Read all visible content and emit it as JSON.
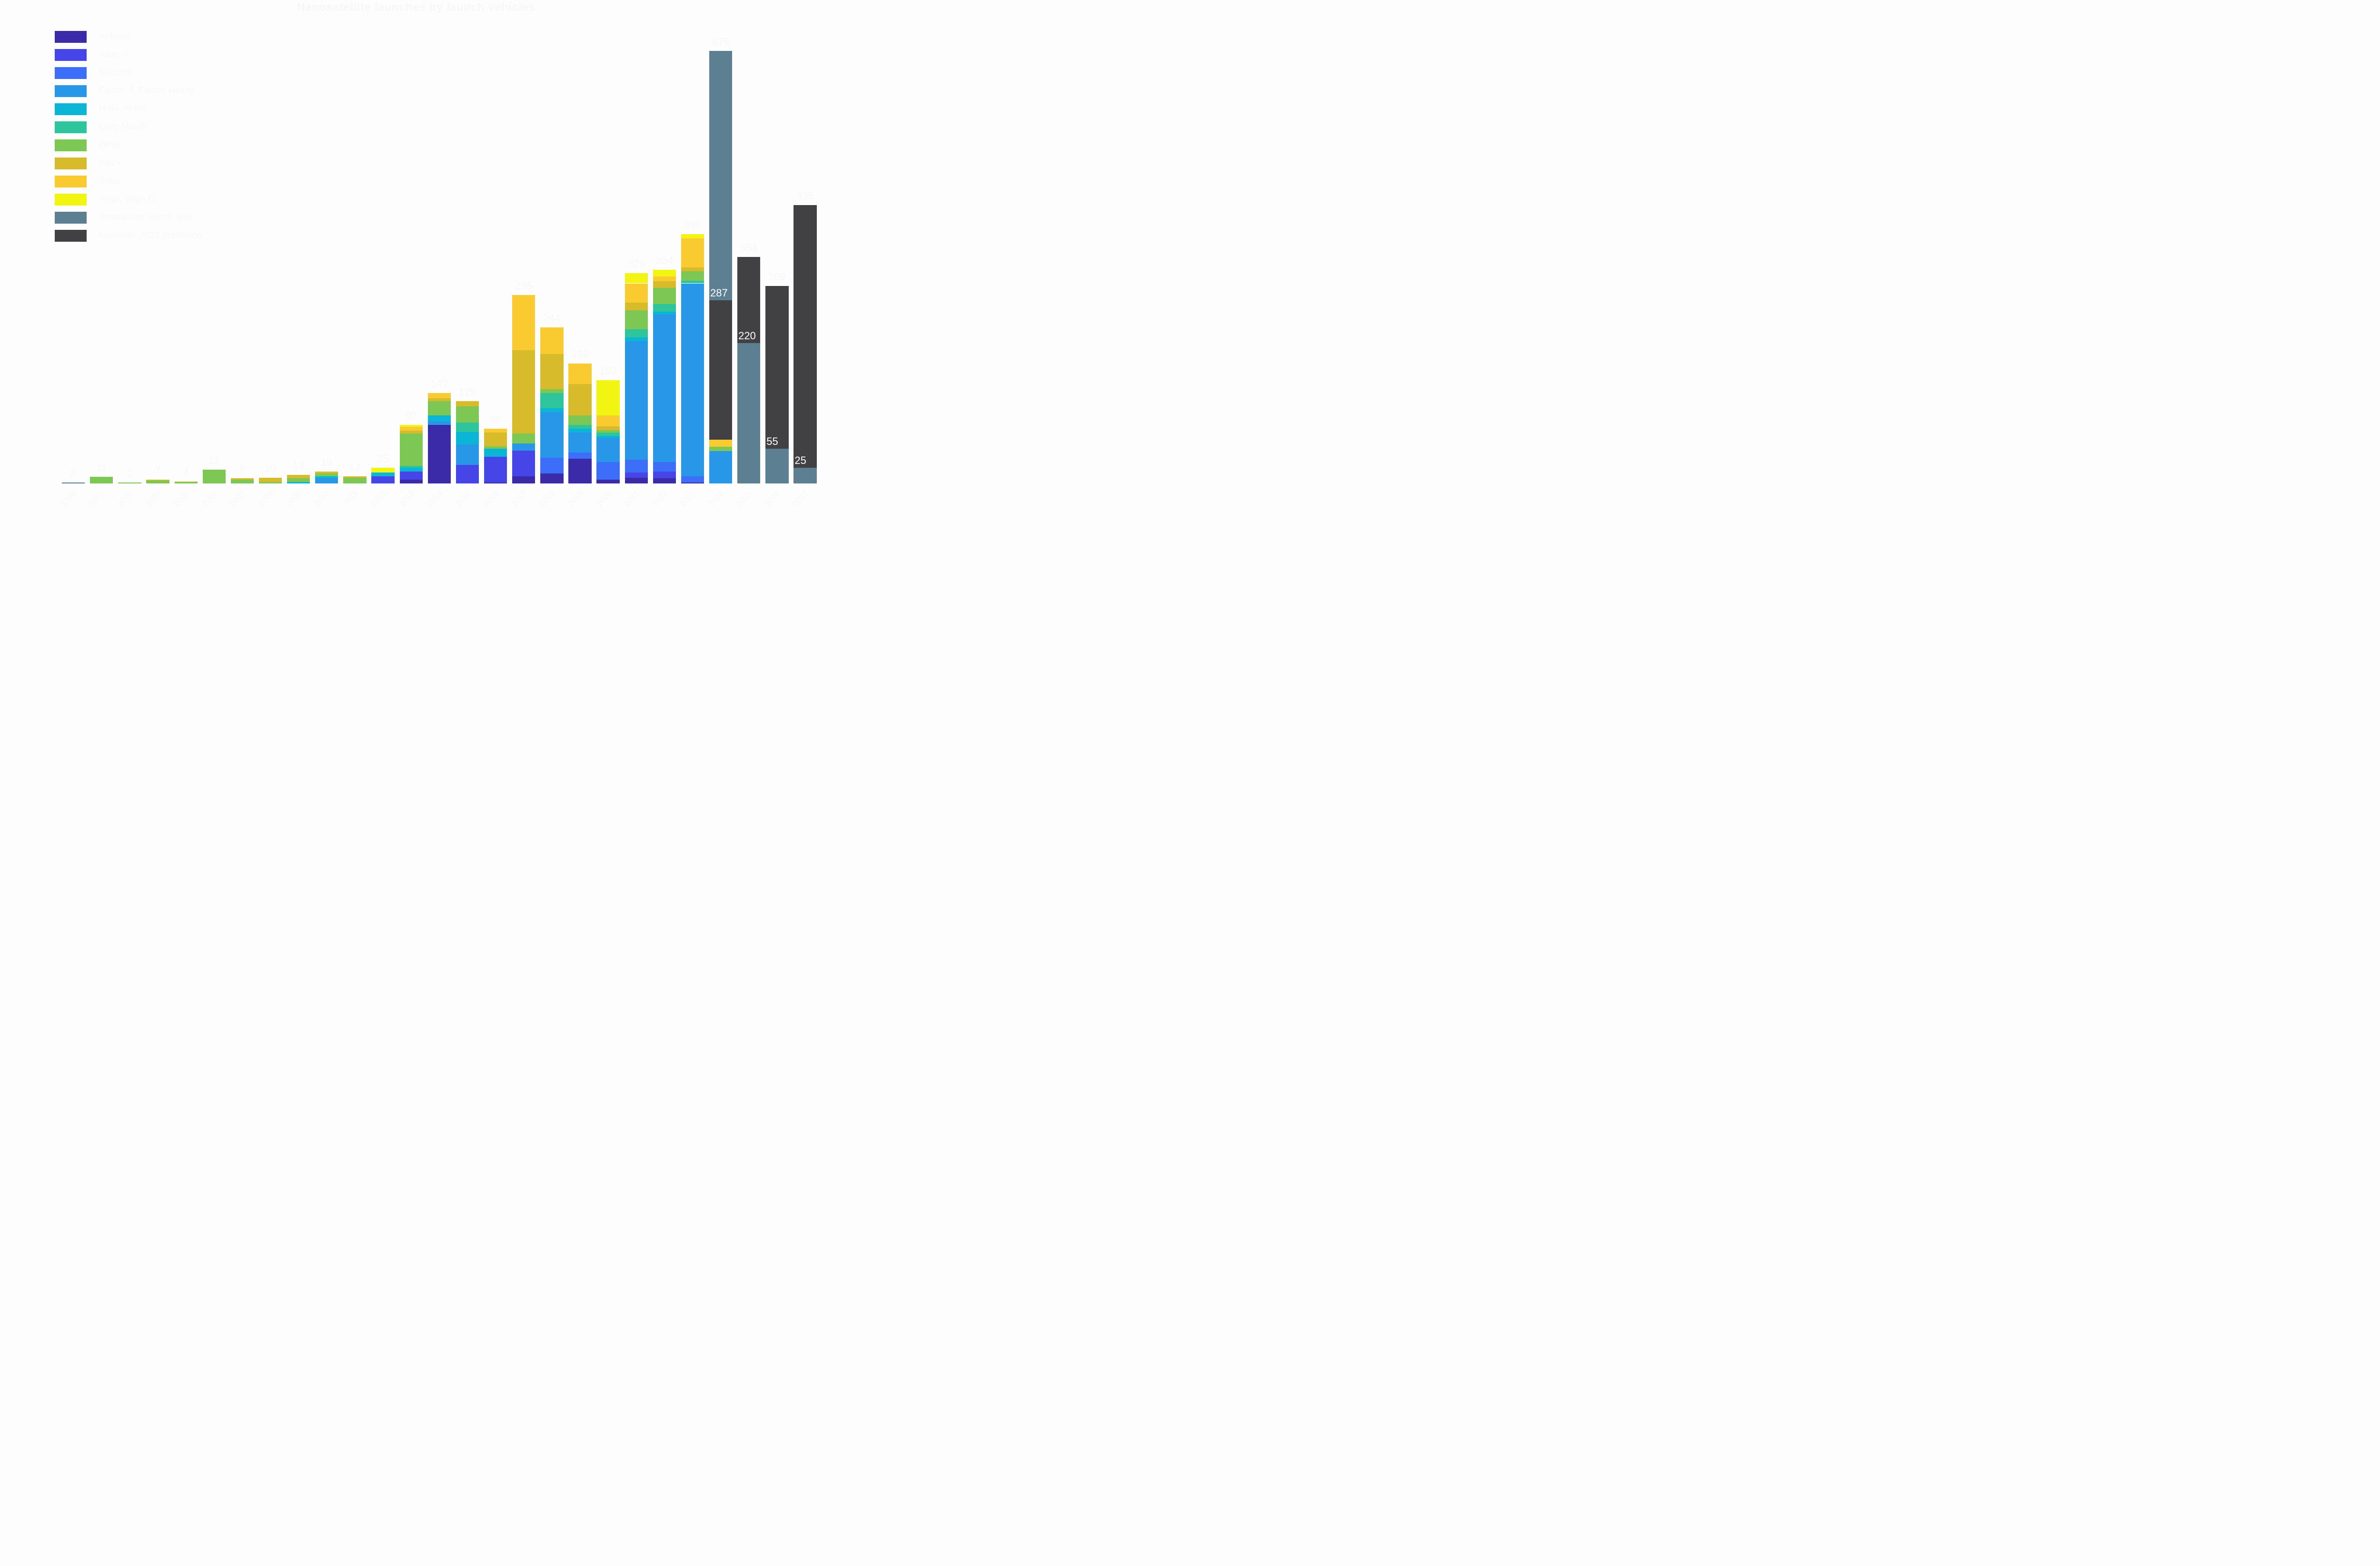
{
  "title": "Nanosatellite launches by launch vehicles",
  "colors": {
    "background": "#fdfdfe",
    "faint_text": "#f7f7f8",
    "bar_label_text": "#ffffff"
  },
  "legend": {
    "position": "top-left",
    "items": [
      {
        "id": "antares",
        "label": "Antares",
        "color": "#3b2ba8"
      },
      {
        "id": "atlas_v",
        "label": "Atlas V",
        "color": "#4645e8"
      },
      {
        "id": "electron",
        "label": "Electron",
        "color": "#3d6ef9"
      },
      {
        "id": "falcon",
        "label": "Falcon 9, Falcon Heavy",
        "color": "#2997e8"
      },
      {
        "id": "h2a",
        "label": "H-IIA, H-IIB",
        "color": "#0ab5d6"
      },
      {
        "id": "long_march",
        "label": "Long March",
        "color": "#2ec49c"
      },
      {
        "id": "other",
        "label": "Other",
        "color": "#7dc855"
      },
      {
        "id": "pslv",
        "label": "PSLV",
        "color": "#d8bb2b"
      },
      {
        "id": "sojuz",
        "label": "Sojuz",
        "color": "#f9cb30"
      },
      {
        "id": "vega",
        "label": "Vega, Vega C",
        "color": "#f2f512"
      },
      {
        "id": "announced",
        "label": "Announced launch year",
        "color": "#5d7f92"
      },
      {
        "id": "prediction",
        "label": "Nanosats 2022 prediction",
        "color": "#414042"
      }
    ]
  },
  "chart_data": {
    "type": "bar",
    "stacked": true,
    "title": "Nanosatellite launches by launch vehicles",
    "xlabel": "",
    "ylabel": "",
    "x_tick_rotation": -48,
    "grid": false,
    "y_range": [
      0,
      700
    ],
    "legend_position": "top-left",
    "series_colors": {
      "antares": "#3b2ba8",
      "atlas_v": "#4645e8",
      "electron": "#3d6ef9",
      "falcon": "#2997e8",
      "h2a": "#0ab5d6",
      "long_march": "#2ec49c",
      "other": "#7dc855",
      "pslv": "#d8bb2b",
      "sojuz": "#f9cb30",
      "vega": "#f2f512",
      "announced": "#5d7f92",
      "prediction": "#414042"
    },
    "bars": [
      {
        "year": "1998",
        "total": "2",
        "segments": [
          {
            "series": "other",
            "value": 1
          },
          {
            "series": "announced",
            "value": 1
          }
        ]
      },
      {
        "year": "2000",
        "total": "11",
        "segments": [
          {
            "series": "other",
            "value": 11
          }
        ]
      },
      {
        "year": "2002",
        "total": "2",
        "segments": [
          {
            "series": "other",
            "value": 2
          }
        ]
      },
      {
        "year": "2003",
        "total": "7",
        "segments": [
          {
            "series": "other",
            "value": 5
          },
          {
            "series": "pslv",
            "value": 2
          }
        ]
      },
      {
        "year": "2005",
        "total": "4",
        "segments": [
          {
            "series": "other",
            "value": 3
          },
          {
            "series": "pslv",
            "value": 1
          }
        ]
      },
      {
        "year": "2006",
        "total": "22",
        "segments": [
          {
            "series": "other",
            "value": 22
          }
        ]
      },
      {
        "year": "2007",
        "total": "9",
        "segments": [
          {
            "series": "long_march",
            "value": 1
          },
          {
            "series": "other",
            "value": 6
          },
          {
            "series": "pslv",
            "value": 2
          }
        ]
      },
      {
        "year": "2008",
        "total": "10",
        "segments": [
          {
            "series": "other",
            "value": 3
          },
          {
            "series": "pslv",
            "value": 7
          }
        ]
      },
      {
        "year": "2009",
        "total": "14",
        "segments": [
          {
            "series": "h2a",
            "value": 3
          },
          {
            "series": "other",
            "value": 6
          },
          {
            "series": "pslv",
            "value": 5
          }
        ]
      },
      {
        "year": "2010",
        "total": "19",
        "segments": [
          {
            "series": "falcon",
            "value": 9
          },
          {
            "series": "h2a",
            "value": 3
          },
          {
            "series": "other",
            "value": 4
          },
          {
            "series": "pslv",
            "value": 3
          }
        ]
      },
      {
        "year": "2011",
        "total": "12",
        "segments": [
          {
            "series": "other",
            "value": 10
          },
          {
            "series": "pslv",
            "value": 2
          }
        ]
      },
      {
        "year": "2012",
        "total": "25",
        "segments": [
          {
            "series": "atlas_v",
            "value": 12
          },
          {
            "series": "h2a",
            "value": 6
          },
          {
            "series": "vega",
            "value": 7
          }
        ]
      },
      {
        "year": "2013",
        "total": "92",
        "segments": [
          {
            "series": "antares",
            "value": 7
          },
          {
            "series": "atlas_v",
            "value": 12
          },
          {
            "series": "h2a",
            "value": 6
          },
          {
            "series": "long_march",
            "value": 3
          },
          {
            "series": "other",
            "value": 51
          },
          {
            "series": "pslv",
            "value": 4
          },
          {
            "series": "sojuz",
            "value": 6
          },
          {
            "series": "vega",
            "value": 3
          }
        ]
      },
      {
        "year": "2014",
        "total": "142",
        "segments": [
          {
            "series": "antares",
            "value": 92
          },
          {
            "series": "falcon",
            "value": 6
          },
          {
            "series": "h2a",
            "value": 9
          },
          {
            "series": "other",
            "value": 22
          },
          {
            "series": "pslv",
            "value": 5
          },
          {
            "series": "sojuz",
            "value": 8
          }
        ]
      },
      {
        "year": "2015",
        "total": "129",
        "segments": [
          {
            "series": "atlas_v",
            "value": 30
          },
          {
            "series": "falcon",
            "value": 32
          },
          {
            "series": "h2a",
            "value": 19
          },
          {
            "series": "long_march",
            "value": 15
          },
          {
            "series": "other",
            "value": 25
          },
          {
            "series": "pslv",
            "value": 8
          }
        ]
      },
      {
        "year": "2016",
        "total": "86",
        "segments": [
          {
            "series": "antares",
            "value": 2
          },
          {
            "series": "atlas_v",
            "value": 40
          },
          {
            "series": "h2a",
            "value": 13
          },
          {
            "series": "other",
            "value": 4
          },
          {
            "series": "pslv",
            "value": 21
          },
          {
            "series": "sojuz",
            "value": 6
          }
        ]
      },
      {
        "year": "2017",
        "total": "295",
        "segments": [
          {
            "series": "antares",
            "value": 12
          },
          {
            "series": "atlas_v",
            "value": 40
          },
          {
            "series": "falcon",
            "value": 11
          },
          {
            "series": "other",
            "value": 16
          },
          {
            "series": "pslv",
            "value": 130
          },
          {
            "series": "sojuz",
            "value": 86
          }
        ]
      },
      {
        "year": "2018",
        "total": "244",
        "segments": [
          {
            "series": "antares",
            "value": 16
          },
          {
            "series": "electron",
            "value": 25
          },
          {
            "series": "falcon",
            "value": 71
          },
          {
            "series": "h2a",
            "value": 6
          },
          {
            "series": "long_march",
            "value": 24
          },
          {
            "series": "other",
            "value": 6
          },
          {
            "series": "pslv",
            "value": 55
          },
          {
            "series": "sojuz",
            "value": 41
          }
        ]
      },
      {
        "year": "2019",
        "total": "188",
        "segments": [
          {
            "series": "antares",
            "value": 39
          },
          {
            "series": "electron",
            "value": 10
          },
          {
            "series": "falcon",
            "value": 31
          },
          {
            "series": "h2a",
            "value": 6
          },
          {
            "series": "long_march",
            "value": 6
          },
          {
            "series": "other",
            "value": 15
          },
          {
            "series": "pslv",
            "value": 49
          },
          {
            "series": "sojuz",
            "value": 32
          }
        ]
      },
      {
        "year": "2020",
        "total": "162",
        "segments": [
          {
            "series": "antares",
            "value": 7
          },
          {
            "series": "electron",
            "value": 27
          },
          {
            "series": "falcon",
            "value": 38
          },
          {
            "series": "h2a",
            "value": 3
          },
          {
            "series": "long_march",
            "value": 5
          },
          {
            "series": "other",
            "value": 4
          },
          {
            "series": "pslv",
            "value": 6
          },
          {
            "series": "sojuz",
            "value": 17
          },
          {
            "series": "vega",
            "value": 55
          }
        ]
      },
      {
        "year": "2021",
        "total": "329",
        "segments": [
          {
            "series": "antares",
            "value": 10
          },
          {
            "series": "atlas_v",
            "value": 8
          },
          {
            "series": "electron",
            "value": 20
          },
          {
            "series": "falcon",
            "value": 185
          },
          {
            "series": "h2a",
            "value": 6
          },
          {
            "series": "long_march",
            "value": 12
          },
          {
            "series": "other",
            "value": 30
          },
          {
            "series": "pslv",
            "value": 12
          },
          {
            "series": "sojuz",
            "value": 30
          },
          {
            "series": "vega",
            "value": 16
          }
        ]
      },
      {
        "year": "2022",
        "total": "334",
        "segments": [
          {
            "series": "antares",
            "value": 9
          },
          {
            "series": "atlas_v",
            "value": 10
          },
          {
            "series": "electron",
            "value": 15
          },
          {
            "series": "falcon",
            "value": 230
          },
          {
            "series": "h2a",
            "value": 5
          },
          {
            "series": "long_march",
            "value": 12
          },
          {
            "series": "other",
            "value": 25
          },
          {
            "series": "pslv",
            "value": 10
          },
          {
            "series": "sojuz",
            "value": 8
          },
          {
            "series": "vega",
            "value": 10
          }
        ]
      },
      {
        "year": "2023",
        "total": "390",
        "segments": [
          {
            "series": "antares",
            "value": 2
          },
          {
            "series": "electron",
            "value": 10
          },
          {
            "series": "falcon",
            "value": 301
          },
          {
            "series": "long_march",
            "value": 4
          },
          {
            "series": "other",
            "value": 15
          },
          {
            "series": "pslv",
            "value": 6
          },
          {
            "series": "sojuz",
            "value": 45
          },
          {
            "series": "vega",
            "value": 7
          }
        ]
      },
      {
        "year": "2024",
        "total": "676",
        "boundary_label": {
          "text": "287",
          "value": 287
        },
        "segments": [
          {
            "series": "electron",
            "value": 1
          },
          {
            "series": "falcon",
            "value": 50
          },
          {
            "series": "other",
            "value": 7
          },
          {
            "series": "sojuz",
            "value": 11
          },
          {
            "series": "prediction",
            "value": 218
          },
          {
            "series": "announced",
            "value": 389
          }
        ]
      },
      {
        "year": "2025",
        "total": "354",
        "boundary_label": {
          "text": "220",
          "value": 220
        },
        "segments": [
          {
            "series": "announced",
            "value": 220
          },
          {
            "series": "prediction",
            "value": 134
          }
        ]
      },
      {
        "year": "2026",
        "total": "309",
        "boundary_label": {
          "text": "55",
          "value": 55
        },
        "segments": [
          {
            "series": "announced",
            "value": 55
          },
          {
            "series": "prediction",
            "value": 254
          }
        ]
      },
      {
        "year": "2027",
        "total": "435",
        "boundary_label": {
          "text": "25",
          "value": 25
        },
        "segments": [
          {
            "series": "announced",
            "value": 25
          },
          {
            "series": "prediction",
            "value": 410
          }
        ]
      }
    ]
  }
}
